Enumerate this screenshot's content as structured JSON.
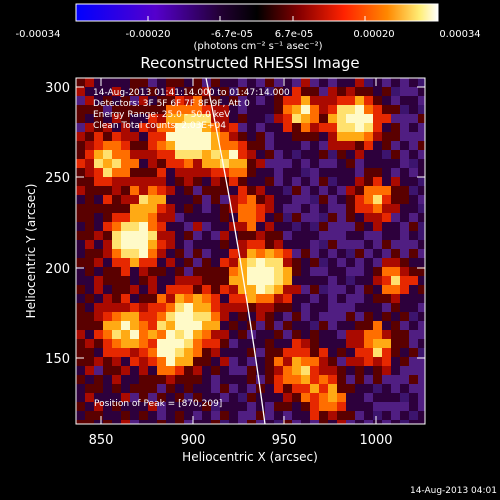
{
  "colorbar": {
    "ticks": [
      "-0.00034",
      "-0.00020",
      "-6.7e-05",
      "6.7e-05",
      "0.00020",
      "0.00034"
    ],
    "units": "(photons cm⁻² s⁻¹ asec⁻²)",
    "colors": [
      "#0000ff",
      "#6600cc",
      "#330044",
      "#000000",
      "#880000",
      "#ff2200",
      "#ff8800",
      "#ffee77",
      "#ffffff"
    ]
  },
  "plot": {
    "title": "Reconstructed RHESSI Image",
    "xlabel": "Heliocentric X (arcsec)",
    "ylabel": "Heliocentric Y (arcsec)",
    "xticks": [
      "850",
      "900",
      "950",
      "1000"
    ],
    "yticks": [
      "300",
      "250",
      "200",
      "150"
    ],
    "xlim": [
      835,
      1025
    ],
    "ylim": [
      112,
      307
    ]
  },
  "info": {
    "line1": "14-Aug-2013 01:41:14.000 to 01:47:14.000",
    "line2": "Detectors: 3F 5F 6F 7F 8F 9F, Att 0",
    "line3": "Energy Range: 25.0 - 50.0 keV",
    "line4": "Clean    Total counts: 2.03E+04",
    "peak": "Position of Peak = [870,209]"
  },
  "footer": {
    "timestamp": "14-Aug-2013 04:01"
  }
}
